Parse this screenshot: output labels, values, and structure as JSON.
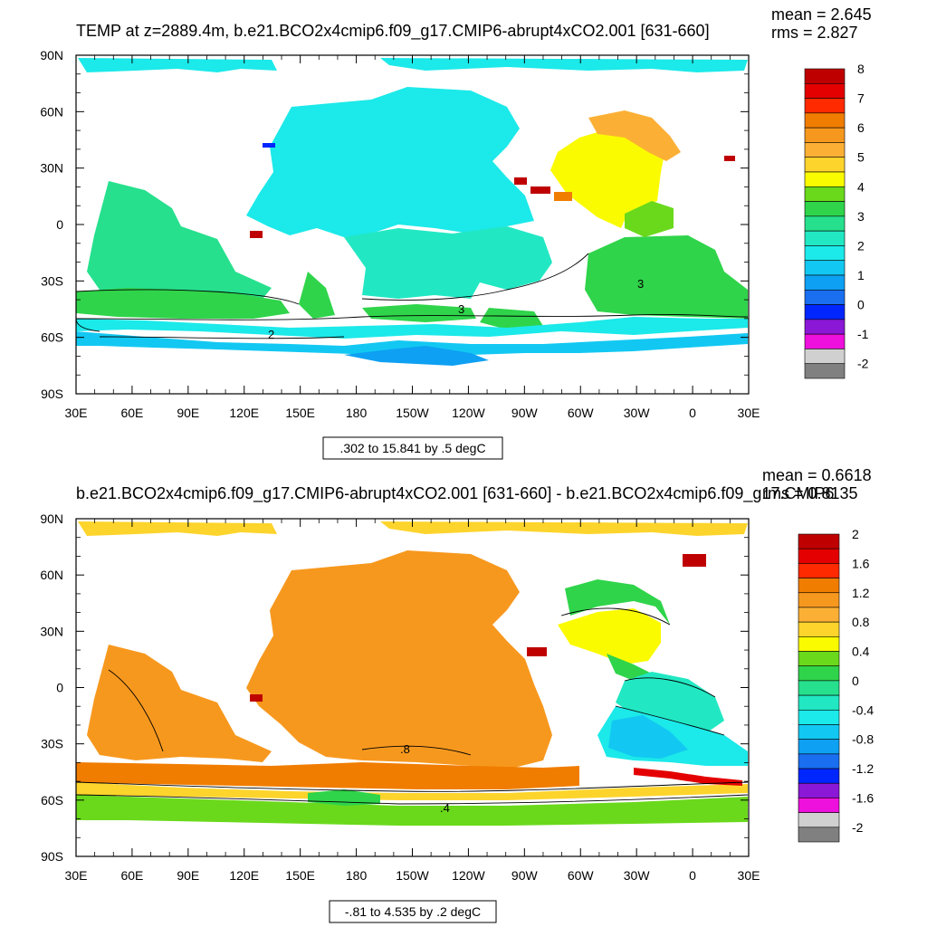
{
  "chart_data": [
    {
      "type": "heatmap",
      "title": "TEMP at z=2889.4m, b.e21.BCO2x4cmip6.f09_g17.CMIP6-abrupt4xCO2.001 [631-660]",
      "stats": {
        "mean": "mean = 2.645",
        "rms": "rms = 2.827"
      },
      "range_label": ".302 to 15.841 by .5 degC",
      "x_ticks": [
        "30E",
        "60E",
        "90E",
        "120E",
        "150E",
        "180",
        "150W",
        "120W",
        "90W",
        "60W",
        "30W",
        "0",
        "30E"
      ],
      "y_ticks": [
        "90N",
        "60N",
        "30N",
        "0",
        "30S",
        "60S",
        "90S"
      ],
      "colorbar_labels": [
        "8",
        "7",
        "6",
        "5",
        "4",
        "3",
        "2",
        "1",
        "0",
        "-1",
        "-2"
      ],
      "colorbar_colors": [
        "#bf0000",
        "#e40000",
        "#ff2a00",
        "#f07d00",
        "#f7981e",
        "#fbb035",
        "#fdd42c",
        "#fbfb00",
        "#6ad91b",
        "#2fd44a",
        "#26e08d",
        "#21e8c3",
        "#1ce9e9",
        "#12c8f2",
        "#0ea0f2",
        "#1a6ef0",
        "#0026ff",
        "#8a18d6",
        "#ee10dc",
        "#d0d0d0",
        "#808080"
      ],
      "contour_labels": [
        "2",
        "3",
        "3"
      ],
      "value_range": [
        0.302,
        15.841
      ],
      "units": "degC"
    },
    {
      "type": "heatmap",
      "title": "b.e21.BCO2x4cmip6.f09_g17.CMIP6-abrupt4xCO2.001 [631-660] - b.e21.BCO2x4cmip6.f09_g17.CMIP6",
      "stats": {
        "mean": "mean = 0.6618",
        "rms": "rms = 0.8135"
      },
      "range_label": "-.81 to 4.535 by .2 degC",
      "x_ticks": [
        "30E",
        "60E",
        "90E",
        "120E",
        "150E",
        "180",
        "150W",
        "120W",
        "90W",
        "60W",
        "30W",
        "0",
        "30E"
      ],
      "y_ticks": [
        "90N",
        "60N",
        "30N",
        "0",
        "30S",
        "60S",
        "90S"
      ],
      "colorbar_labels": [
        "2",
        "1.6",
        "1.2",
        "0.8",
        "0.4",
        "0",
        "-0.4",
        "-0.8",
        "-1.2",
        "-1.6",
        "-2"
      ],
      "colorbar_colors": [
        "#bf0000",
        "#e40000",
        "#ff2a00",
        "#f07d00",
        "#f7981e",
        "#fbb035",
        "#fdd42c",
        "#fbfb00",
        "#6ad91b",
        "#2fd44a",
        "#26e08d",
        "#21e8c3",
        "#1ce9e9",
        "#12c8f2",
        "#0ea0f2",
        "#1a6ef0",
        "#0026ff",
        "#8a18d6",
        "#ee10dc",
        "#d0d0d0",
        "#808080"
      ],
      "contour_labels": [
        ".8",
        ".4"
      ],
      "value_range": [
        -0.81,
        4.535
      ],
      "units": "degC"
    }
  ]
}
